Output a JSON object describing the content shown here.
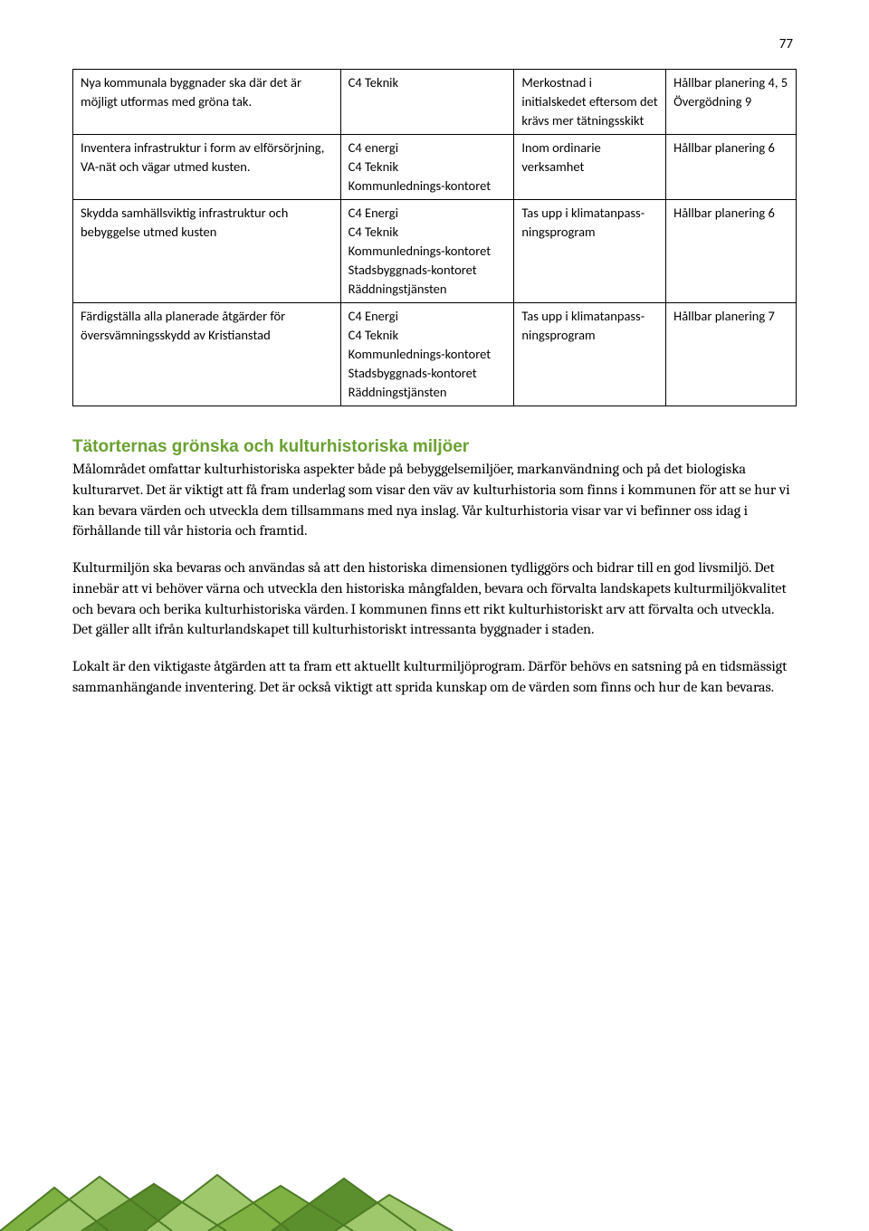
{
  "page_number": "77",
  "table": {
    "rows": [
      {
        "c1": "Nya kommunala byggnader ska där det är möjligt utformas med gröna tak.",
        "c2": "C4 Teknik",
        "c3": "Merkostnad i initialskedet eftersom det krävs mer tätningsskikt",
        "c4": "Hållbar planering 4, 5 Övergödning 9"
      },
      {
        "c1": "Inventera infrastruktur i form av elförsörjning, VA-nät och vägar utmed kusten.",
        "c2": "C4 energi\nC4 Teknik\nKommunlednings-kontoret",
        "c3": "Inom ordinarie verksamhet",
        "c4": "Hållbar planering 6"
      },
      {
        "c1": "Skydda samhällsviktig infrastruktur och bebyggelse utmed kusten",
        "c2": "C4 Energi\nC4 Teknik\nKommunlednings-kontoret\nStadsbyggnads-kontoret\nRäddningstjänsten",
        "c3": "Tas upp i klimatanpass-ningsprogram",
        "c4": "Hållbar planering 6"
      },
      {
        "c1": "Färdigställa alla planerade åtgärder för översvämningsskydd av Kristianstad",
        "c2": "C4 Energi\nC4 Teknik\nKommunlednings-kontoret\nStadsbyggnads-kontoret\nRäddningstjänsten",
        "c3": "Tas upp i klimatanpass-ningsprogram",
        "c4": "Hållbar planering 7"
      }
    ]
  },
  "section_heading": "Tätorternas grönska och kulturhistoriska miljöer",
  "paragraphs": {
    "p1": "Målområdet omfattar kulturhistoriska aspekter både på bebyggelsemiljöer, markanvändning och på det biologiska kulturarvet. Det är viktigt att få fram underlag som visar den väv av kulturhistoria som finns i kommunen för att se hur vi kan bevara värden och utveckla dem tillsammans med nya inslag. Vår kulturhistoria visar var vi befinner oss idag i förhållande till vår historia och framtid.",
    "p2": "Kulturmiljön ska bevaras och användas så att den historiska dimensionen tydliggörs och bidrar till en god livsmiljö. Det innebär att vi behöver värna och utveckla den historiska mångfalden, bevara och förvalta landskapets kulturmiljökvalitet och bevara och berika kulturhistoriska värden. I kommunen finns ett rikt kulturhistoriskt arv att förvalta och utveckla. Det gäller allt ifrån kulturlandskapet till kulturhistoriskt intressanta byggnader i staden.",
    "p3": "Lokalt är den viktigaste åtgärden att ta fram ett aktuellt kulturmiljöprogram. Därför behövs en satsning på en tidsmässigt sammanhängande inventering. Det är också viktigt att sprida kunskap om de värden som finns och hur de kan bevaras."
  },
  "colors": {
    "heading_green": "#6aa131",
    "deco_dark": "#5b8e2c",
    "deco_light": "#9ec86b",
    "deco_mid": "#7eb042"
  }
}
